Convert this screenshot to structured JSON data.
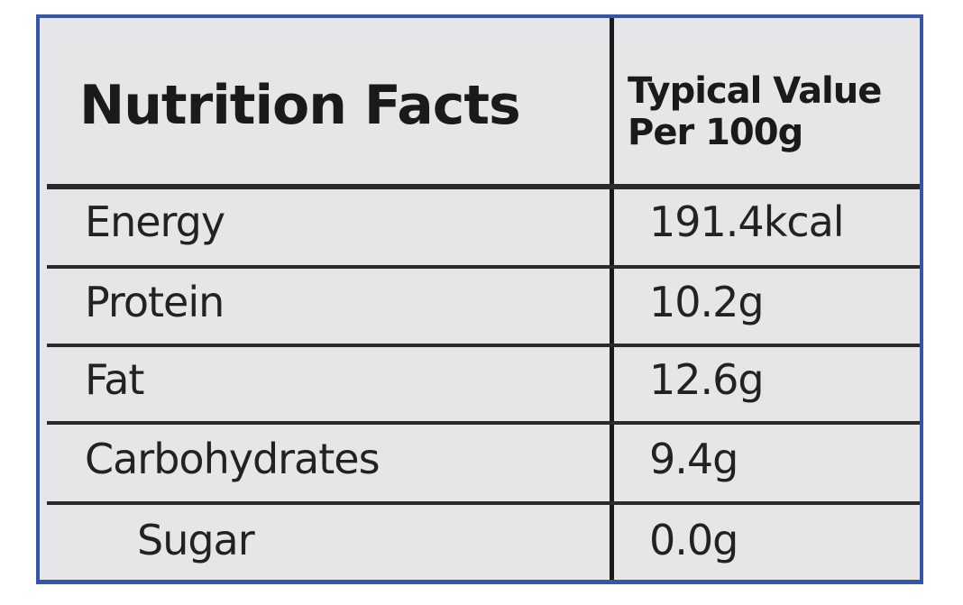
{
  "header": {
    "title": "Nutrition Facts",
    "value_heading": [
      "Typical Value",
      "Per 100g"
    ]
  },
  "table": {
    "rows": [
      [
        "Energy",
        "191.4kcal"
      ],
      [
        "Protein",
        "10.2g"
      ],
      [
        "Fat",
        "12.6g"
      ],
      [
        "Carbohydrates",
        "9.4g"
      ],
      [
        "Sugar",
        "0.0g"
      ]
    ]
  }
}
